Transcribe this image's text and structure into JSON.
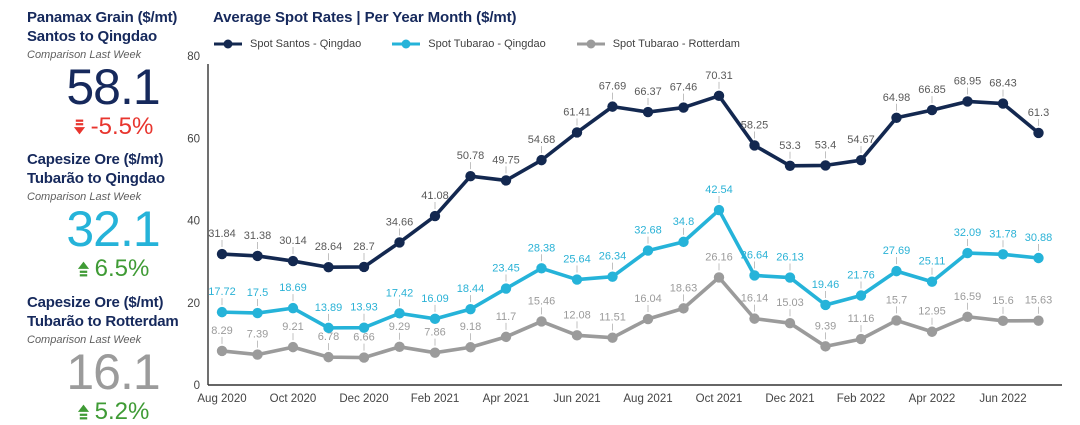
{
  "kpis": [
    {
      "title_line1": "Panamax Grain ($/mt)",
      "title_line2": "Santos to Qingdao",
      "subtitle": "Comparison Last Week",
      "value": "58.1",
      "value_color": "#16295c",
      "delta": "-5.5%",
      "delta_direction": "down",
      "delta_color": "#e8352e"
    },
    {
      "title_line1": "Capesize Ore ($/mt)",
      "title_line2": "Tubarão to Qingdao",
      "subtitle": "Comparison Last Week",
      "value": "32.1",
      "value_color": "#25b3d9",
      "delta": "6.5%",
      "delta_direction": "up",
      "delta_color": "#3f9b35"
    },
    {
      "title_line1": "Capesize Ore ($/mt)",
      "title_line2": "Tubarão to Rotterdam",
      "subtitle": "Comparison Last Week",
      "value": "16.1",
      "value_color": "#9b9b9b",
      "delta": "5.2%",
      "delta_direction": "up",
      "delta_color": "#3f9b35"
    }
  ],
  "chart": {
    "title": "Average Spot Rates | Per Year Month  ($/mt)"
  },
  "chart_data": {
    "type": "line",
    "points_count": 24,
    "x_tick_labels": [
      "Aug 2020",
      "Oct 2020",
      "Dec 2020",
      "Feb 2021",
      "Apr 2021",
      "Jun 2021",
      "Aug 2021",
      "Oct 2021",
      "Dec 2021",
      "Feb 2022",
      "Apr 2022",
      "Jun 2022"
    ],
    "tick_every": 2,
    "ylim": [
      0,
      80
    ],
    "yticks": [
      0,
      20,
      40,
      60,
      80
    ],
    "grid": false,
    "legend_position": "top",
    "series": [
      {
        "name": "Spot Santos - Qingdao",
        "color": "#132850",
        "label_color": "#595959",
        "values": [
          31.84,
          31.38,
          30.14,
          28.64,
          28.7,
          34.66,
          41.08,
          50.78,
          49.75,
          54.68,
          61.41,
          67.69,
          66.37,
          67.46,
          70.31,
          58.25,
          53.3,
          53.4,
          54.67,
          64.98,
          66.85,
          68.95,
          68.43,
          61.3
        ]
      },
      {
        "name": "Spot Tubarao - Qingdao",
        "color": "#25b3d9",
        "label_color": "#2ab2d6",
        "values": [
          17.72,
          17.5,
          18.69,
          13.89,
          13.93,
          17.42,
          16.09,
          18.44,
          23.45,
          28.38,
          25.64,
          26.34,
          32.68,
          34.8,
          42.54,
          26.64,
          26.13,
          19.46,
          21.76,
          27.69,
          25.11,
          32.09,
          31.78,
          30.88
        ]
      },
      {
        "name": "Spot Tubarao - Rotterdam",
        "color": "#9b9b9b",
        "label_color": "#9b9b9b",
        "values": [
          8.29,
          7.39,
          9.21,
          6.78,
          6.66,
          9.29,
          7.86,
          9.18,
          11.7,
          15.46,
          12.08,
          11.51,
          16.04,
          18.63,
          26.16,
          16.14,
          15.03,
          9.39,
          11.16,
          15.7,
          12.95,
          16.59,
          15.6,
          15.63
        ]
      }
    ],
    "axis_color": "#333333",
    "tick_label_color": "#444444"
  }
}
